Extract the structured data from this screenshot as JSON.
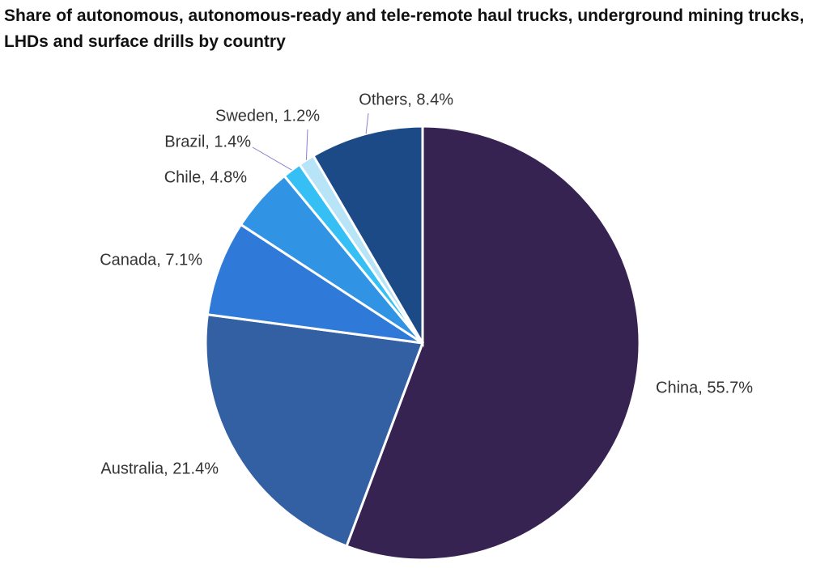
{
  "chart_data": {
    "type": "pie",
    "title": "Share of autonomous, autonomous-ready and tele-remote haul trucks, underground mining trucks, LHDs and surface drills by country",
    "values": [
      55.7,
      21.4,
      7.1,
      4.8,
      1.4,
      1.2,
      8.4
    ],
    "value_labels": [
      "China, 55.7%",
      "Australia, 21.4%",
      "Canada, 7.1%",
      "Chile, 4.8%",
      "Brazil, 1.4%",
      "Sweden, 1.2%",
      "Others, 8.4%"
    ],
    "colors": [
      "#372352",
      "#335fa3",
      "#2f7ad8",
      "#3193e4",
      "#36bff5",
      "#b8e4f7",
      "#1b4a86"
    ]
  }
}
